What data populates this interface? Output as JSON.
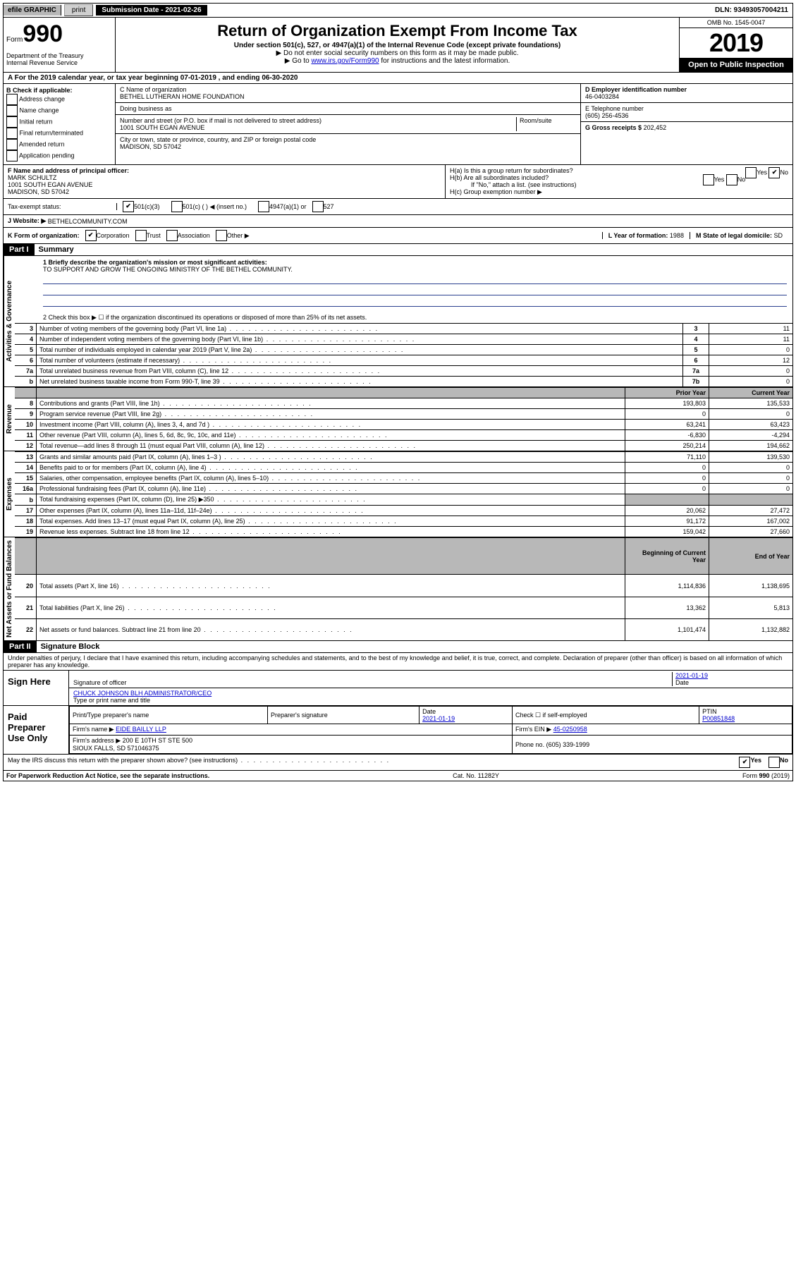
{
  "topbar": {
    "efile": "efile GRAPHIC",
    "print": "print",
    "submission": "Submission Date - 2021-02-26",
    "dln": "DLN: 93493057004211"
  },
  "header": {
    "form_prefix": "Form",
    "form_num": "990",
    "dept": "Department of the Treasury\nInternal Revenue Service",
    "title": "Return of Organization Exempt From Income Tax",
    "subtitle": "Under section 501(c), 527, or 4947(a)(1) of the Internal Revenue Code (except private foundations)",
    "note1": "▶ Do not enter social security numbers on this form as it may be made public.",
    "note2_pre": "▶ Go to ",
    "note2_link": "www.irs.gov/Form990",
    "note2_post": " for instructions and the latest information.",
    "omb": "OMB No. 1545-0047",
    "year": "2019",
    "otp": "Open to Public Inspection"
  },
  "period": "A For the 2019 calendar year, or tax year beginning 07-01-2019    , and ending 06-30-2020",
  "checkboxes": {
    "header": "B Check if applicable:",
    "items": [
      "Address change",
      "Name change",
      "Initial return",
      "Final return/terminated",
      "Amended return",
      "Application pending"
    ]
  },
  "org": {
    "c_label": "C Name of organization",
    "name": "BETHEL LUTHERAN HOME FOUNDATION",
    "dba_label": "Doing business as",
    "dba": "",
    "addr_label": "Number and street (or P.O. box if mail is not delivered to street address)",
    "room_label": "Room/suite",
    "addr": "1001 SOUTH EGAN AVENUE",
    "city_label": "City or town, state or province, country, and ZIP or foreign postal code",
    "city": "MADISON, SD  57042"
  },
  "col_d": {
    "ein_label": "D Employer identification number",
    "ein": "46-0403284",
    "phone_label": "E Telephone number",
    "phone": "(605) 256-4536",
    "gross_label": "G Gross receipts $",
    "gross": "202,452"
  },
  "officer": {
    "label": "F  Name and address of principal officer:",
    "name": "MARK SCHULTZ",
    "addr": "1001 SOUTH EGAN AVENUE\nMADISON, SD  57042"
  },
  "h": {
    "a": "H(a)  Is this a group return for subordinates?",
    "b": "H(b)  Are all subordinates included?",
    "b_note": "If \"No,\" attach a list. (see instructions)",
    "c": "H(c)  Group exemption number ▶",
    "yn_yes": "Yes",
    "yn_no": "No"
  },
  "tax_status": {
    "label": "Tax-exempt status:",
    "opt1": "501(c)(3)",
    "opt2": "501(c) (   ) ◀ (insert no.)",
    "opt3": "4947(a)(1) or",
    "opt4": "527"
  },
  "website": {
    "label": "J  Website: ▶",
    "value": "BETHELCOMMUNITY.COM"
  },
  "korg": {
    "k": "K Form of organization:",
    "corp": "Corporation",
    "trust": "Trust",
    "assoc": "Association",
    "other": "Other ▶",
    "l": "L Year of formation: ",
    "l_val": "1988",
    "m": "M State of legal domicile: ",
    "m_val": "SD"
  },
  "part1": {
    "header": "Part I",
    "title": "Summary",
    "q1": "1  Briefly describe the organization's mission or most significant activities:",
    "mission": "TO SUPPORT AND GROW THE ONGOING MINISTRY OF THE BETHEL COMMUNITY.",
    "q2": "2   Check this box ▶ ☐  if the organization discontinued its operations or disposed of more than 25% of its net assets.",
    "sidelabels": {
      "gov": "Activities & Governance",
      "rev": "Revenue",
      "exp": "Expenses",
      "net": "Net Assets or Fund Balances"
    }
  },
  "gov_lines": [
    {
      "n": "3",
      "t": "Number of voting members of the governing body (Part VI, line 1a)",
      "b": "3",
      "v": "11"
    },
    {
      "n": "4",
      "t": "Number of independent voting members of the governing body (Part VI, line 1b)",
      "b": "4",
      "v": "11"
    },
    {
      "n": "5",
      "t": "Total number of individuals employed in calendar year 2019 (Part V, line 2a)",
      "b": "5",
      "v": "0"
    },
    {
      "n": "6",
      "t": "Total number of volunteers (estimate if necessary)",
      "b": "6",
      "v": "12"
    },
    {
      "n": "7a",
      "t": "Total unrelated business revenue from Part VIII, column (C), line 12",
      "b": "7a",
      "v": "0"
    },
    {
      "n": "b",
      "t": "Net unrelated business taxable income from Form 990-T, line 39",
      "b": "7b",
      "v": "0"
    }
  ],
  "colheads": {
    "prior": "Prior Year",
    "current": "Current Year"
  },
  "rev_lines": [
    {
      "n": "8",
      "t": "Contributions and grants (Part VIII, line 1h)",
      "p": "193,803",
      "c": "135,533"
    },
    {
      "n": "9",
      "t": "Program service revenue (Part VIII, line 2g)",
      "p": "0",
      "c": "0"
    },
    {
      "n": "10",
      "t": "Investment income (Part VIII, column (A), lines 3, 4, and 7d )",
      "p": "63,241",
      "c": "63,423"
    },
    {
      "n": "11",
      "t": "Other revenue (Part VIII, column (A), lines 5, 6d, 8c, 9c, 10c, and 11e)",
      "p": "-6,830",
      "c": "-4,294"
    },
    {
      "n": "12",
      "t": "Total revenue—add lines 8 through 11 (must equal Part VIII, column (A), line 12)",
      "p": "250,214",
      "c": "194,662"
    }
  ],
  "exp_lines": [
    {
      "n": "13",
      "t": "Grants and similar amounts paid (Part IX, column (A), lines 1–3 )",
      "p": "71,110",
      "c": "139,530"
    },
    {
      "n": "14",
      "t": "Benefits paid to or for members (Part IX, column (A), line 4)",
      "p": "0",
      "c": "0"
    },
    {
      "n": "15",
      "t": "Salaries, other compensation, employee benefits (Part IX, column (A), lines 5–10)",
      "p": "0",
      "c": "0"
    },
    {
      "n": "16a",
      "t": "Professional fundraising fees (Part IX, column (A), line 11e)",
      "p": "0",
      "c": "0"
    },
    {
      "n": "b",
      "t": "Total fundraising expenses (Part IX, column (D), line 25) ▶350",
      "p": "",
      "c": "",
      "shade": true
    },
    {
      "n": "17",
      "t": "Other expenses (Part IX, column (A), lines 11a–11d, 11f–24e)",
      "p": "20,062",
      "c": "27,472"
    },
    {
      "n": "18",
      "t": "Total expenses. Add lines 13–17 (must equal Part IX, column (A), line 25)",
      "p": "91,172",
      "c": "167,002"
    },
    {
      "n": "19",
      "t": "Revenue less expenses. Subtract line 18 from line 12",
      "p": "159,042",
      "c": "27,660"
    }
  ],
  "net_heads": {
    "begin": "Beginning of Current Year",
    "end": "End of Year"
  },
  "net_lines": [
    {
      "n": "20",
      "t": "Total assets (Part X, line 16)",
      "p": "1,114,836",
      "c": "1,138,695"
    },
    {
      "n": "21",
      "t": "Total liabilities (Part X, line 26)",
      "p": "13,362",
      "c": "5,813"
    },
    {
      "n": "22",
      "t": "Net assets or fund balances. Subtract line 21 from line 20",
      "p": "1,101,474",
      "c": "1,132,882"
    }
  ],
  "part2": {
    "header": "Part II",
    "title": "Signature Block",
    "perjury": "Under penalties of perjury, I declare that I have examined this return, including accompanying schedules and statements, and to the best of my knowledge and belief, it is true, correct, and complete. Declaration of preparer (other than officer) is based on all information of which preparer has any knowledge."
  },
  "sign": {
    "label": "Sign Here",
    "sig_of_officer": "Signature of officer",
    "date": "2021-01-19",
    "date_label": "Date",
    "name": "CHUCK JOHNSON  BLH ADMINISTRATOR/CEO",
    "name_label": "Type or print name and title"
  },
  "paid": {
    "label": "Paid Preparer Use Only",
    "h1": "Print/Type preparer's name",
    "h2": "Preparer's signature",
    "h3": "Date",
    "h4_pre": "Check ☐ if self-employed",
    "h5": "PTIN",
    "date": "2021-01-19",
    "ptin": "P00851848",
    "firm_label": "Firm's name    ▶",
    "firm": "EIDE BAILLY LLP",
    "ein_label": "Firm's EIN ▶",
    "ein": "45-0250958",
    "addr_label": "Firm's address ▶",
    "addr": "200 E 10TH ST STE 500\nSIOUX FALLS, SD  571046375",
    "phone_label": "Phone no.",
    "phone": "(605) 339-1999"
  },
  "discuss": "May the IRS discuss this return with the preparer shown above? (see instructions)",
  "footer": {
    "left": "For Paperwork Reduction Act Notice, see the separate instructions.",
    "mid": "Cat. No. 11282Y",
    "right": "Form 990 (2019)"
  }
}
